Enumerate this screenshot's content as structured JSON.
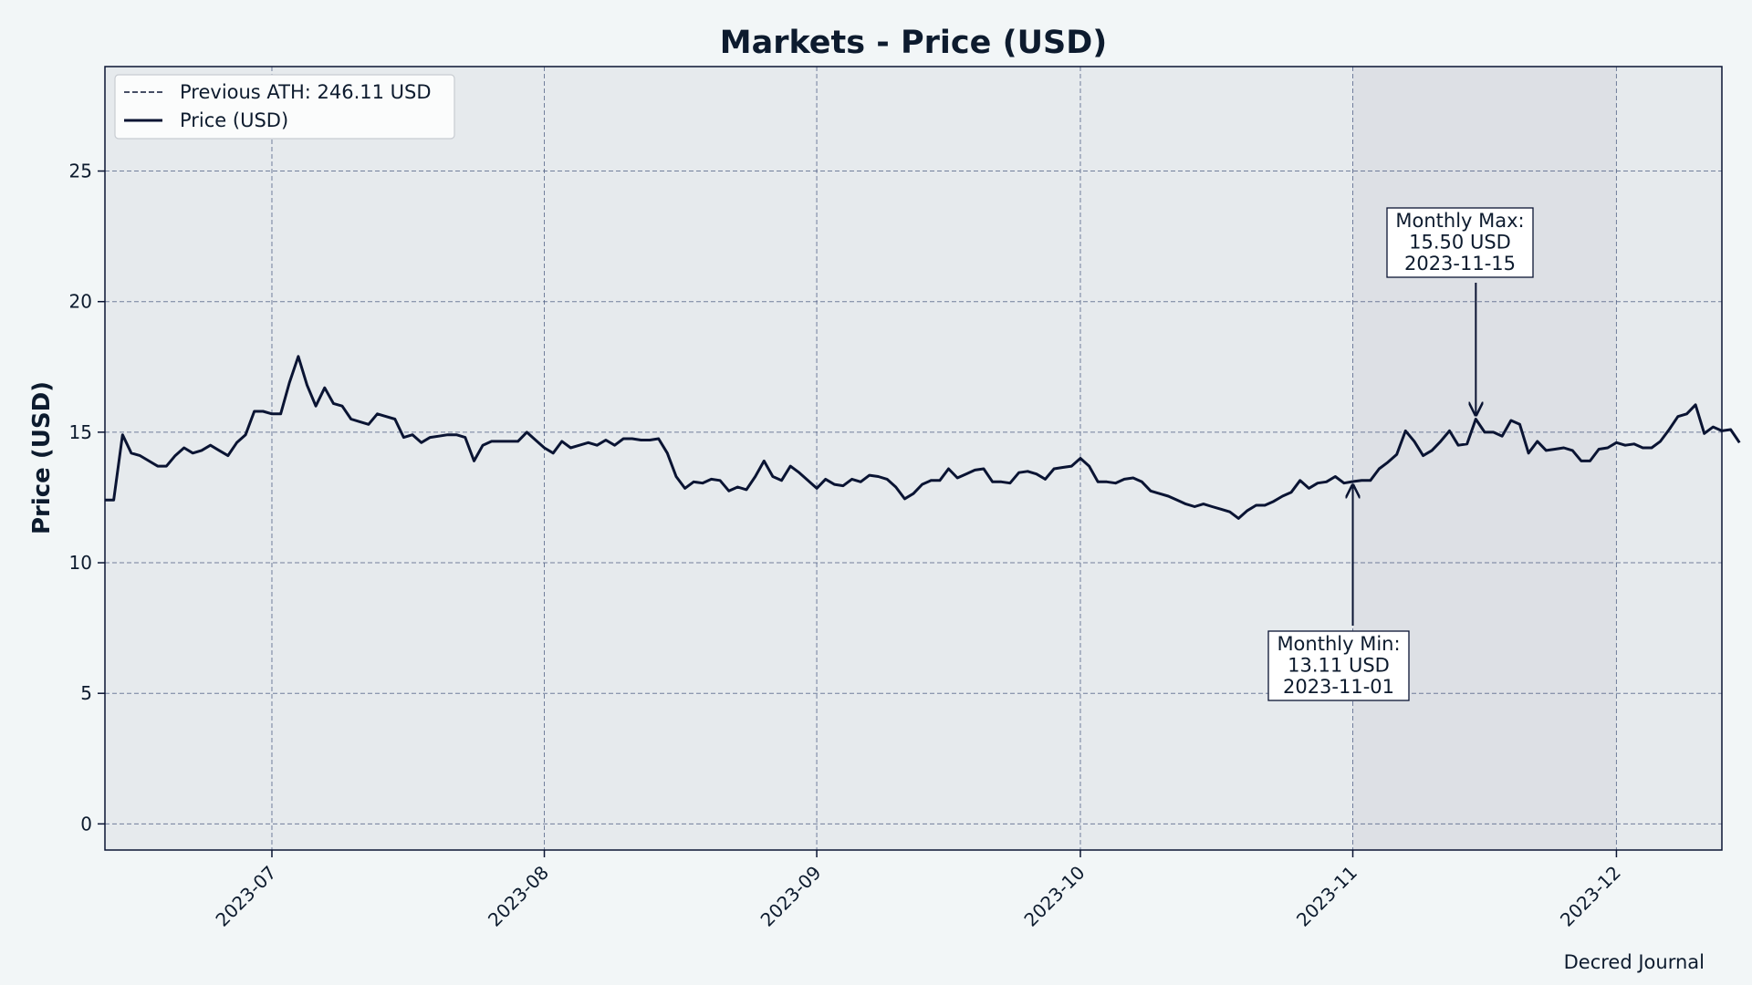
{
  "chart_data": {
    "type": "line",
    "title": "Markets - Price (USD)",
    "xlabel": "",
    "ylabel": "Price (USD)",
    "xlim": [
      "2023-06-12",
      "2023-12-13"
    ],
    "ylim": [
      -1,
      29
    ],
    "x_ticks": [
      "2023-07-01",
      "2023-08-01",
      "2023-09-01",
      "2023-10-01",
      "2023-11-01",
      "2023-12-01"
    ],
    "x_tick_labels": [
      "2023-07",
      "2023-08",
      "2023-09",
      "2023-10",
      "2023-11",
      "2023-12"
    ],
    "y_ticks": [
      0,
      5,
      10,
      15,
      20,
      25
    ],
    "y_tick_labels": [
      "0",
      "5",
      "10",
      "15",
      "20",
      "25"
    ],
    "grid": true,
    "legend_position": "top-left",
    "legend": [
      {
        "label": "Previous ATH: 246.11 USD",
        "style": "dashed"
      },
      {
        "label": "Price (USD)",
        "style": "solid"
      }
    ],
    "highlight_range": [
      "2023-11-01",
      "2023-12-01"
    ],
    "series": [
      {
        "name": "Price (USD)",
        "color": "#0a1433",
        "start_date": "2023-06-12",
        "values": [
          12.4,
          12.4,
          14.9,
          14.2,
          14.1,
          13.9,
          13.7,
          13.7,
          14.1,
          14.4,
          14.2,
          14.3,
          14.5,
          14.3,
          14.1,
          14.6,
          14.9,
          15.8,
          15.8,
          15.7,
          15.7,
          16.9,
          17.9,
          16.8,
          16.0,
          16.7,
          16.1,
          16.0,
          15.5,
          15.4,
          15.3,
          15.7,
          15.6,
          15.5,
          14.8,
          14.9,
          14.6,
          14.8,
          14.85,
          14.9,
          14.9,
          14.8,
          13.9,
          14.5,
          14.65,
          14.65,
          14.65,
          14.65,
          15.0,
          14.7,
          14.4,
          14.2,
          14.65,
          14.4,
          14.5,
          14.6,
          14.5,
          14.7,
          14.5,
          14.75,
          14.75,
          14.7,
          14.7,
          14.75,
          14.2,
          13.3,
          12.85,
          13.1,
          13.05,
          13.2,
          13.15,
          12.75,
          12.9,
          12.8,
          13.3,
          13.9,
          13.3,
          13.15,
          13.7,
          13.45,
          13.15,
          12.85,
          13.2,
          13.0,
          12.95,
          13.2,
          13.1,
          13.35,
          13.3,
          13.2,
          12.9,
          12.45,
          12.65,
          13.0,
          13.15,
          13.15,
          13.6,
          13.25,
          13.4,
          13.55,
          13.6,
          13.1,
          13.1,
          13.05,
          13.45,
          13.5,
          13.4,
          13.2,
          13.6,
          13.65,
          13.7,
          14.0,
          13.7,
          13.1,
          13.1,
          13.05,
          13.2,
          13.25,
          13.1,
          12.75,
          12.65,
          12.55,
          12.4,
          12.25,
          12.15,
          12.25,
          12.15,
          12.05,
          11.95,
          11.7,
          12.0,
          12.2,
          12.2,
          12.35,
          12.55,
          12.7,
          13.15,
          12.85,
          13.05,
          13.1,
          13.3,
          13.05,
          13.11,
          13.15,
          13.15,
          13.6,
          13.85,
          14.15,
          15.05,
          14.65,
          14.1,
          14.3,
          14.65,
          15.05,
          14.5,
          14.55,
          15.5,
          15.0,
          15.0,
          14.85,
          15.45,
          15.3,
          14.2,
          14.65,
          14.3,
          14.35,
          14.4,
          14.3,
          13.9,
          13.9,
          14.35,
          14.4,
          14.6,
          14.5,
          14.55,
          14.4,
          14.4,
          14.65,
          15.1,
          15.6,
          15.7,
          16.05,
          14.95,
          15.2,
          15.05,
          15.1,
          14.6
        ]
      }
    ],
    "annotations": [
      {
        "lines": [
          "Monthly Max:",
          "15.50 USD",
          "2023-11-15"
        ],
        "date": "2023-11-15",
        "value": 15.5
      },
      {
        "lines": [
          "Monthly Min:",
          "13.11 USD",
          "2023-11-01"
        ],
        "date": "2023-11-01",
        "value": 13.11
      }
    ],
    "credit": "Decred Journal"
  }
}
